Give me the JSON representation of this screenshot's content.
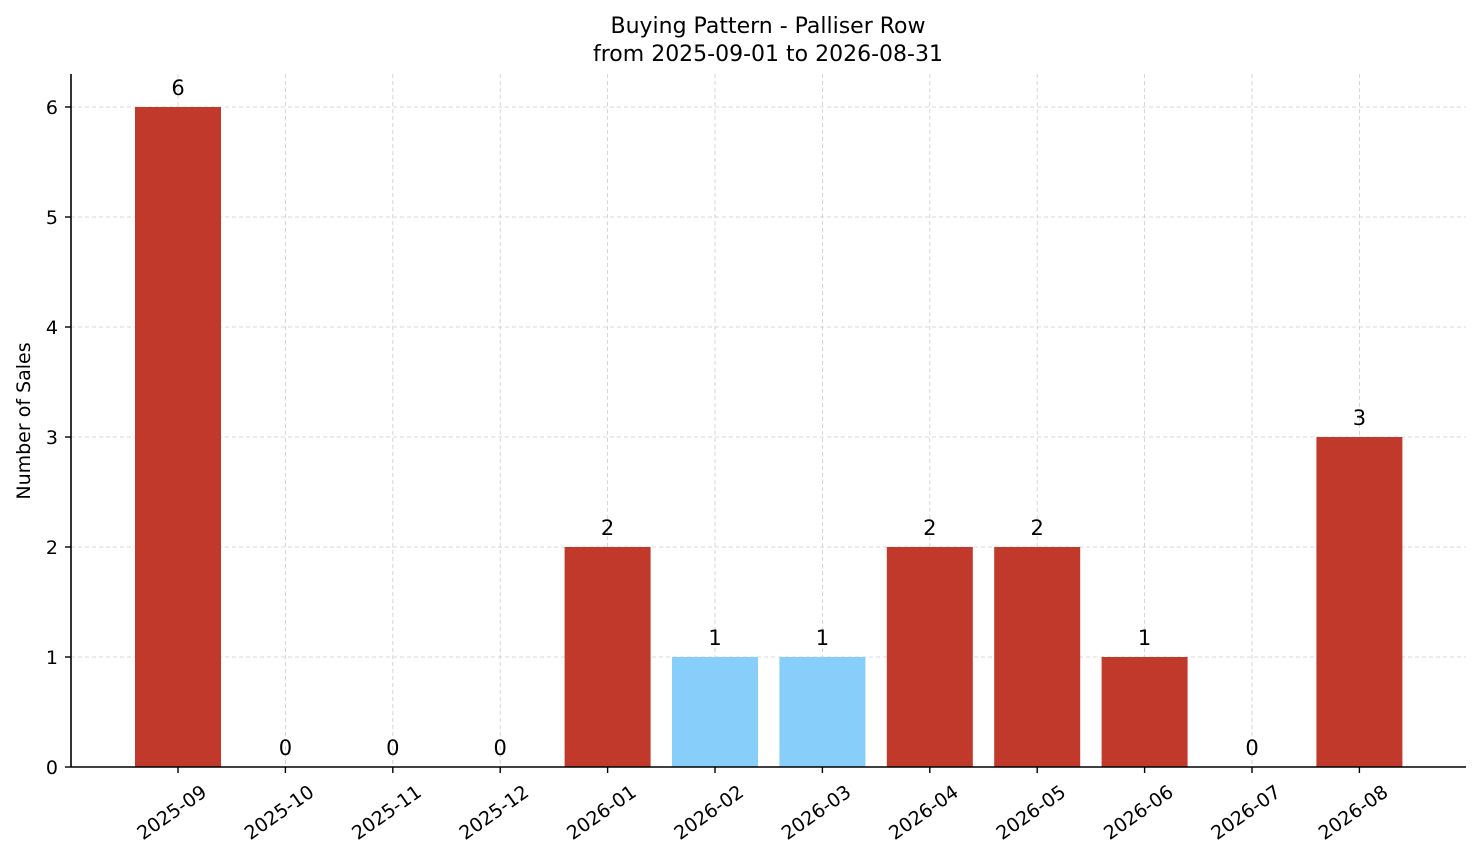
{
  "chart_data": {
    "type": "bar",
    "title": "Buying Pattern - Palliser Row",
    "subtitle": "from 2025-09-01 to 2026-08-31",
    "xlabel": "",
    "ylabel": "Number of Sales",
    "ylim": [
      0,
      6.3
    ],
    "yticks": [
      "0",
      "1",
      "2",
      "3",
      "4",
      "5",
      "6"
    ],
    "grid": true,
    "categories": [
      "2025-09",
      "2025-10",
      "2025-11",
      "2025-12",
      "2026-01",
      "2026-02",
      "2026-03",
      "2026-04",
      "2026-05",
      "2026-06",
      "2026-07",
      "2026-08"
    ],
    "values": [
      6,
      0,
      0,
      0,
      2,
      1,
      1,
      2,
      2,
      1,
      0,
      3
    ],
    "bar_colors": [
      "#c0392b",
      "#c0392b",
      "#c0392b",
      "#c0392b",
      "#c0392b",
      "#87cefa",
      "#87cefa",
      "#c0392b",
      "#c0392b",
      "#c0392b",
      "#c0392b",
      "#c0392b"
    ],
    "data_labels": [
      "6",
      "0",
      "0",
      "0",
      "2",
      "1",
      "1",
      "2",
      "2",
      "1",
      "0",
      "3"
    ]
  }
}
